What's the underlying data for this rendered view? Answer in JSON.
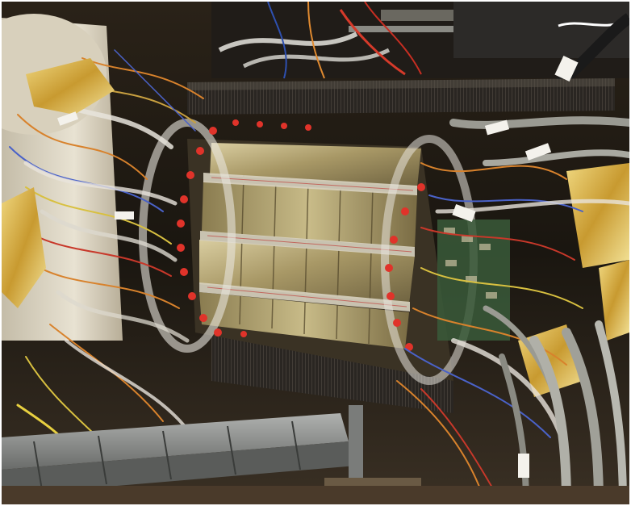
{
  "photo": {
    "subject": "particle-detector-barrel",
    "palette": {
      "background_dark": "#1a1610",
      "frame_white": "#d8d2c4",
      "silicon_panel": "#a89866",
      "silicon_highlight": "#d9cda0",
      "carbon_tube": "#2a2622",
      "cable_orange": "#d8822c",
      "cable_red": "#d8382a",
      "cable_blue": "#4a62c8",
      "cable_grey": "#9a9a92",
      "gold_foil": "#d6b24a",
      "steel_rail": "#8e9090"
    }
  }
}
